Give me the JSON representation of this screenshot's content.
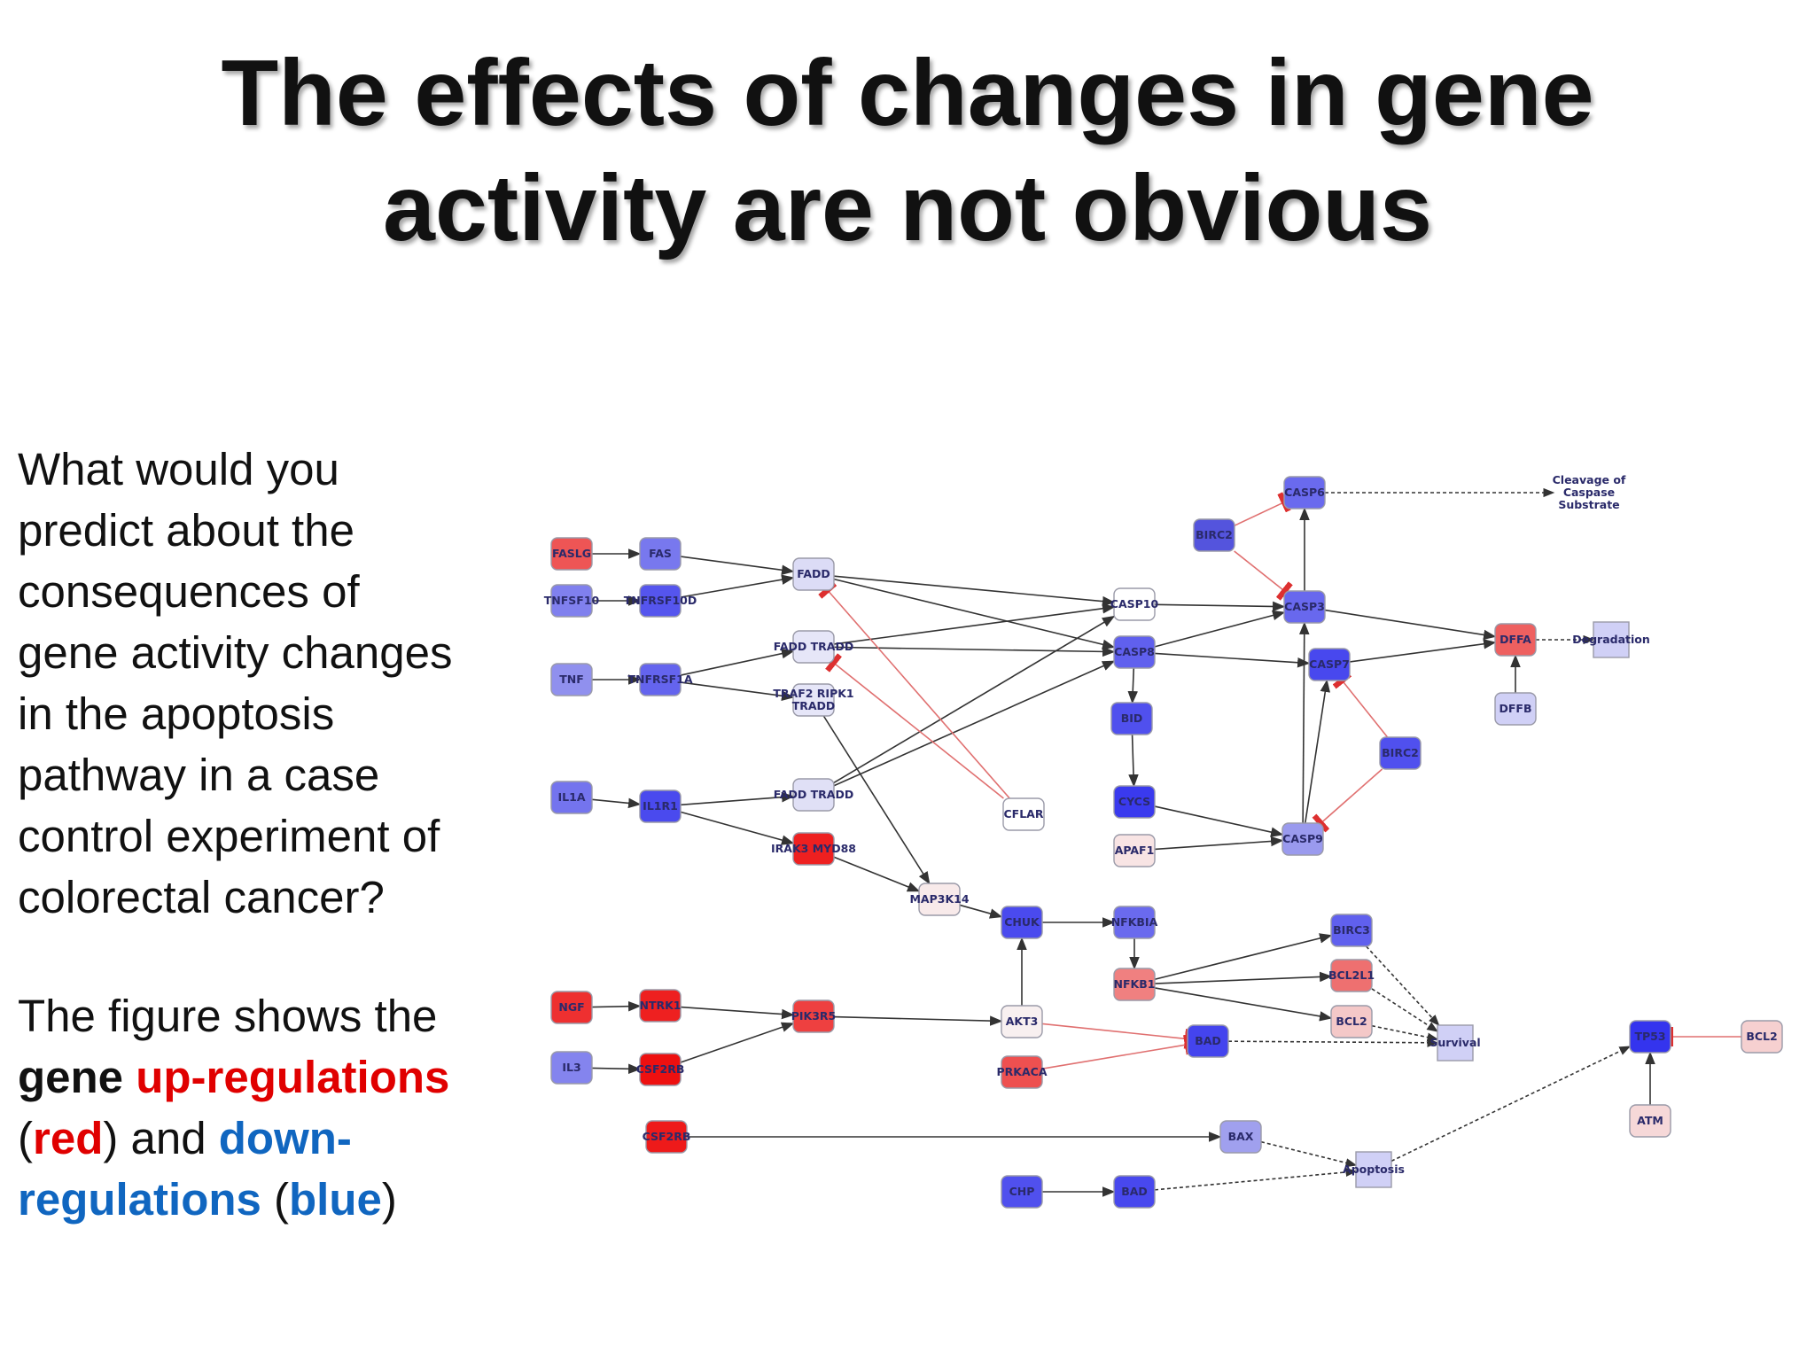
{
  "title": {
    "line1": "The effects of changes in gene",
    "line2": "activity are not obvious"
  },
  "question": {
    "lines": [
      "What would you",
      "predict about the",
      "consequences of",
      "gene activity changes",
      "in the apoptosis",
      "pathway in a case",
      "control experiment of",
      "colorectal cancer?"
    ]
  },
  "explanation": {
    "line1": "The  figure shows the",
    "word_gene": "gene",
    "word_up": "up-regulations",
    "open_paren": "(",
    "word_red": "red",
    "mid_text": ") and ",
    "word_down": "down-",
    "word_regulations": "regulations",
    "open_paren2": " (",
    "word_blue": "blue",
    "close_paren": ")"
  },
  "colors": {
    "up": "#e00000",
    "down": "#1066c0"
  },
  "diagram": {
    "nodes": [
      {
        "id": "FASLG",
        "label": "FASLG",
        "fill": "#ee5555",
        "shape": "rect"
      },
      {
        "id": "FAS",
        "label": "FAS",
        "fill": "#7878ee",
        "shape": "rect"
      },
      {
        "id": "TNFSF10",
        "label": "TNFSF10",
        "fill": "#8080ee",
        "shape": "rect"
      },
      {
        "id": "TNFRSF10D",
        "label": "TNFRSF10D",
        "fill": "#5555ee",
        "shape": "rect"
      },
      {
        "id": "FADD1",
        "label": "FADD",
        "fill": "#dcdcf6",
        "shape": "rect"
      },
      {
        "id": "TNF",
        "label": "TNF",
        "fill": "#9090ee",
        "shape": "rect"
      },
      {
        "id": "TNFRSF1A",
        "label": "TNFRSF1A",
        "fill": "#6464ee",
        "shape": "rect"
      },
      {
        "id": "FADDTRADD1",
        "label": "FADD TRADD",
        "fill": "#e6e6f8",
        "shape": "rect"
      },
      {
        "id": "TRAF2",
        "label": "TRAF2 RIPK1",
        "label2": "TRADD",
        "fill": "#e6e6f8",
        "shape": "rect"
      },
      {
        "id": "IL1A",
        "label": "IL1A",
        "fill": "#7474ee",
        "shape": "rect"
      },
      {
        "id": "IL1R1",
        "label": "IL1R1",
        "fill": "#4a4aee",
        "shape": "rect"
      },
      {
        "id": "FADDTRADD2",
        "label": "FADD TRADD",
        "fill": "#e0e0f6",
        "shape": "rect"
      },
      {
        "id": "IRAK3",
        "label": "IRAK3 MYD88",
        "fill": "#ee2020",
        "shape": "rect"
      },
      {
        "id": "MAP3K14",
        "label": "MAP3K14",
        "fill": "#f8eaea",
        "shape": "rect"
      },
      {
        "id": "CFLAR",
        "label": "CFLAR",
        "fill": "#ffffff",
        "shape": "rect"
      },
      {
        "id": "CASP10",
        "label": "CASP10",
        "fill": "#ffffff",
        "shape": "rect"
      },
      {
        "id": "CASP8",
        "label": "CASP8",
        "fill": "#6060ee",
        "shape": "rect"
      },
      {
        "id": "BID",
        "label": "BID",
        "fill": "#5050ee",
        "shape": "rect"
      },
      {
        "id": "CYCS",
        "label": "CYCS",
        "fill": "#3a3aee",
        "shape": "rect"
      },
      {
        "id": "APAF1",
        "label": "APAF1",
        "fill": "#f8e4e4",
        "shape": "rect"
      },
      {
        "id": "BIRC2a",
        "label": "BIRC2",
        "fill": "#5454dd",
        "shape": "rect"
      },
      {
        "id": "CASP6",
        "label": "CASP6",
        "fill": "#6a6aee",
        "shape": "rect"
      },
      {
        "id": "CASP3",
        "label": "CASP3",
        "fill": "#6868ee",
        "shape": "rect"
      },
      {
        "id": "CASP7",
        "label": "CASP7",
        "fill": "#4848ee",
        "shape": "rect"
      },
      {
        "id": "BIRC2b",
        "label": "BIRC2",
        "fill": "#5050ee",
        "shape": "rect"
      },
      {
        "id": "CASP9",
        "label": "CASP9",
        "fill": "#9a9aee",
        "shape": "rect"
      },
      {
        "id": "DFFA",
        "label": "DFFA",
        "fill": "#ee6060",
        "shape": "rect"
      },
      {
        "id": "DFFB",
        "label": "DFFB",
        "fill": "#d0d0f6",
        "shape": "rect"
      },
      {
        "id": "Degradation",
        "label": "Degradation",
        "fill": "#d0d0f6",
        "shape": "square"
      },
      {
        "id": "Cleavage",
        "label": "Cleavage of",
        "label2": "Caspase",
        "label3": "Substrate",
        "fill": "#ffffff",
        "shape": "text"
      },
      {
        "id": "CHUK",
        "label": "CHUK",
        "fill": "#4a4aee",
        "shape": "rect"
      },
      {
        "id": "NFKBIA",
        "label": "NFKBIA",
        "fill": "#6a6aee",
        "shape": "rect"
      },
      {
        "id": "NFKB1",
        "label": "NFKB1",
        "fill": "#f08080",
        "shape": "rect"
      },
      {
        "id": "BIRC3",
        "label": "BIRC3",
        "fill": "#6060ee",
        "shape": "rect"
      },
      {
        "id": "BCL2L1",
        "label": "BCL2L1",
        "fill": "#ee7070",
        "shape": "rect"
      },
      {
        "id": "BCL2a",
        "label": "BCL2",
        "fill": "#f4c8c8",
        "shape": "rect"
      },
      {
        "id": "Survival",
        "label": "Survival",
        "fill": "#d0d0f6",
        "shape": "square"
      },
      {
        "id": "NGF",
        "label": "NGF",
        "fill": "#ee3030",
        "shape": "rect"
      },
      {
        "id": "NTRK1",
        "label": "NTRK1",
        "fill": "#ee2020",
        "shape": "rect"
      },
      {
        "id": "PIK3R5",
        "label": "PIK3R5",
        "fill": "#ee4040",
        "shape": "rect"
      },
      {
        "id": "AKT3",
        "label": "AKT3",
        "fill": "#f8f0f0",
        "shape": "rect"
      },
      {
        "id": "PRKACA",
        "label": "PRKACA",
        "fill": "#ee5050",
        "shape": "rect"
      },
      {
        "id": "BAD1",
        "label": "BAD",
        "fill": "#4444ee",
        "shape": "rect"
      },
      {
        "id": "IL3",
        "label": "IL3",
        "fill": "#8484ee",
        "shape": "rect"
      },
      {
        "id": "CSF2RB1",
        "label": "CSF2RB",
        "fill": "#ee1010",
        "shape": "rect"
      },
      {
        "id": "CSF2RB2",
        "label": "CSF2RB",
        "fill": "#ee1a1a",
        "shape": "rect"
      },
      {
        "id": "BAX",
        "label": "BAX",
        "fill": "#a0a0ee",
        "shape": "rect"
      },
      {
        "id": "Apoptosis",
        "label": "Apoptosis",
        "fill": "#d0d0f6",
        "shape": "square"
      },
      {
        "id": "CHP",
        "label": "CHP",
        "fill": "#5050ee",
        "shape": "rect"
      },
      {
        "id": "BAD2",
        "label": "BAD",
        "fill": "#4848ee",
        "shape": "rect"
      },
      {
        "id": "TP53",
        "label": "TP53",
        "fill": "#3434ee",
        "shape": "rect"
      },
      {
        "id": "BCL2b",
        "label": "BCL2",
        "fill": "#f6d0d0",
        "shape": "rect"
      },
      {
        "id": "ATM",
        "label": "ATM",
        "fill": "#f6d8d8",
        "shape": "rect"
      }
    ],
    "edges": [
      {
        "from": "FASLG",
        "to": "FAS",
        "type": "act"
      },
      {
        "from": "TNFSF10",
        "to": "TNFRSF10D",
        "type": "act"
      },
      {
        "from": "TNF",
        "to": "TNFRSF1A",
        "type": "act"
      },
      {
        "from": "IL1A",
        "to": "IL1R1",
        "type": "act"
      },
      {
        "from": "FAS",
        "to": "FADD1",
        "type": "act"
      },
      {
        "from": "TNFRSF10D",
        "to": "FADD1",
        "type": "act"
      },
      {
        "from": "TNFRSF1A",
        "to": "FADDTRADD1",
        "type": "act"
      },
      {
        "from": "TNFRSF1A",
        "to": "TRAF2",
        "type": "act"
      },
      {
        "from": "IL1R1",
        "to": "FADDTRADD2",
        "type": "act"
      },
      {
        "from": "IL1R1",
        "to": "IRAK3",
        "type": "act"
      },
      {
        "from": "FADD1",
        "to": "CASP10",
        "type": "act"
      },
      {
        "from": "FADD1",
        "to": "CASP8",
        "type": "act"
      },
      {
        "from": "FADDTRADD1",
        "to": "CASP10",
        "type": "act"
      },
      {
        "from": "FADDTRADD1",
        "to": "CASP8",
        "type": "act"
      },
      {
        "from": "FADDTRADD2",
        "to": "CASP10",
        "type": "act"
      },
      {
        "from": "FADDTRADD2",
        "to": "CASP8",
        "type": "act"
      },
      {
        "from": "TRAF2",
        "to": "MAP3K14",
        "type": "act"
      },
      {
        "from": "IRAK3",
        "to": "MAP3K14",
        "type": "act"
      },
      {
        "from": "CFLAR",
        "to": "FADD1",
        "type": "inh"
      },
      {
        "from": "CFLAR",
        "to": "FADDTRADD1",
        "type": "inh"
      },
      {
        "from": "CASP10",
        "to": "CASP3",
        "type": "act"
      },
      {
        "from": "CASP8",
        "to": "CASP3",
        "type": "act"
      },
      {
        "from": "CASP8",
        "to": "CASP7",
        "type": "act"
      },
      {
        "from": "CASP8",
        "to": "BID",
        "type": "act"
      },
      {
        "from": "BID",
        "to": "CYCS",
        "type": "act"
      },
      {
        "from": "CYCS",
        "to": "CASP9",
        "type": "act"
      },
      {
        "from": "APAF1",
        "to": "CASP9",
        "type": "act"
      },
      {
        "from": "CASP9",
        "to": "CASP3",
        "type": "act"
      },
      {
        "from": "CASP9",
        "to": "CASP7",
        "type": "act"
      },
      {
        "from": "CASP3",
        "to": "CASP6",
        "type": "act"
      },
      {
        "from": "CASP3",
        "to": "DFFA",
        "type": "act"
      },
      {
        "from": "CASP7",
        "to": "DFFA",
        "type": "act"
      },
      {
        "from": "BIRC2a",
        "to": "CASP6",
        "type": "inh"
      },
      {
        "from": "BIRC2a",
        "to": "CASP3",
        "type": "inh"
      },
      {
        "from": "BIRC2b",
        "to": "CASP7",
        "type": "inh"
      },
      {
        "from": "BIRC2b",
        "to": "CASP9",
        "type": "inh"
      },
      {
        "from": "DFFB",
        "to": "DFFA",
        "type": "act"
      },
      {
        "from": "DFFA",
        "to": "Degradation",
        "type": "dash"
      },
      {
        "from": "CASP6",
        "to": "Cleavage",
        "type": "dash"
      },
      {
        "from": "MAP3K14",
        "to": "CHUK",
        "type": "act"
      },
      {
        "from": "CHUK",
        "to": "NFKBIA",
        "type": "act"
      },
      {
        "from": "NFKBIA",
        "to": "NFKB1",
        "type": "act"
      },
      {
        "from": "NFKB1",
        "to": "BIRC3",
        "type": "act"
      },
      {
        "from": "NFKB1",
        "to": "BCL2L1",
        "type": "act"
      },
      {
        "from": "NFKB1",
        "to": "BCL2a",
        "type": "act"
      },
      {
        "from": "BIRC3",
        "to": "Survival",
        "type": "dash"
      },
      {
        "from": "BCL2L1",
        "to": "Survival",
        "type": "dash"
      },
      {
        "from": "BCL2a",
        "to": "Survival",
        "type": "dash"
      },
      {
        "from": "BAD1",
        "to": "Survival",
        "type": "dash"
      },
      {
        "from": "NGF",
        "to": "NTRK1",
        "type": "act"
      },
      {
        "from": "NTRK1",
        "to": "PIK3R5",
        "type": "act"
      },
      {
        "from": "IL3",
        "to": "CSF2RB1",
        "type": "act"
      },
      {
        "from": "CSF2RB1",
        "to": "PIK3R5",
        "type": "act"
      },
      {
        "from": "PIK3R5",
        "to": "AKT3",
        "type": "act"
      },
      {
        "from": "AKT3",
        "to": "CHUK",
        "type": "act"
      },
      {
        "from": "AKT3",
        "to": "BAD1",
        "type": "inh"
      },
      {
        "from": "PRKACA",
        "to": "BAD1",
        "type": "inh"
      },
      {
        "from": "CSF2RB2",
        "to": "BAX",
        "type": "act"
      },
      {
        "from": "BAX",
        "to": "Apoptosis",
        "type": "dash"
      },
      {
        "from": "CHP",
        "to": "BAD2",
        "type": "act"
      },
      {
        "from": "BAD2",
        "to": "Apoptosis",
        "type": "dash"
      },
      {
        "from": "Apoptosis",
        "to": "TP53",
        "type": "dash"
      },
      {
        "from": "ATM",
        "to": "TP53",
        "type": "act"
      },
      {
        "from": "BCL2b",
        "to": "TP53",
        "type": "inh"
      }
    ]
  }
}
